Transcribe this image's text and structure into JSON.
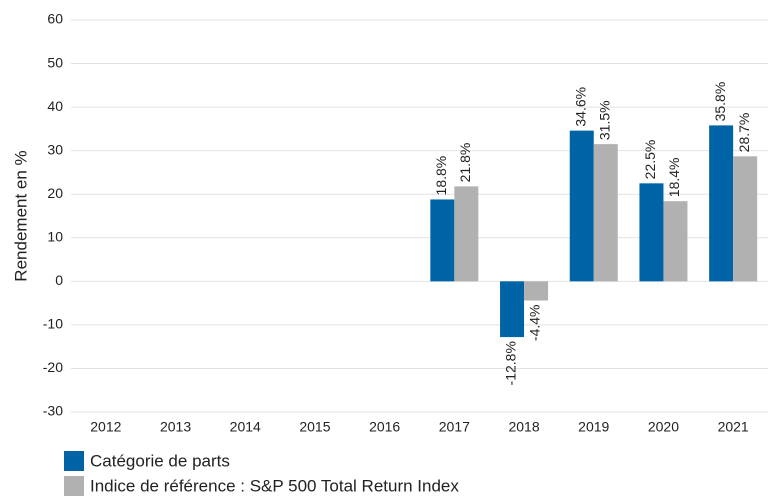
{
  "chart_data": {
    "type": "bar",
    "y_label": "Rendement en %",
    "categories": [
      "2012",
      "2013",
      "2014",
      "2015",
      "2016",
      "2017",
      "2018",
      "2019",
      "2020",
      "2021"
    ],
    "series": [
      {
        "name": "Catégorie de parts",
        "color": "#0063a6",
        "values": [
          null,
          null,
          null,
          null,
          null,
          18.8,
          -12.8,
          34.6,
          22.5,
          35.8
        ],
        "value_labels": [
          null,
          null,
          null,
          null,
          null,
          "18.8%",
          "-12.8%",
          "34.6%",
          "22.5%",
          "35.8%"
        ]
      },
      {
        "name": "Indice de référence : S&P 500 Total Return Index",
        "color": "#b1b1b1",
        "values": [
          null,
          null,
          null,
          null,
          null,
          21.8,
          -4.4,
          31.5,
          18.4,
          28.7
        ],
        "value_labels": [
          null,
          null,
          null,
          null,
          null,
          "21.8%",
          "-4.4%",
          "31.5%",
          "18.4%",
          "28.7%"
        ]
      }
    ],
    "ylim": [
      -30,
      60
    ],
    "yticks": [
      -30,
      -20,
      -10,
      0,
      10,
      20,
      30,
      40,
      50,
      60
    ],
    "grid": true
  }
}
